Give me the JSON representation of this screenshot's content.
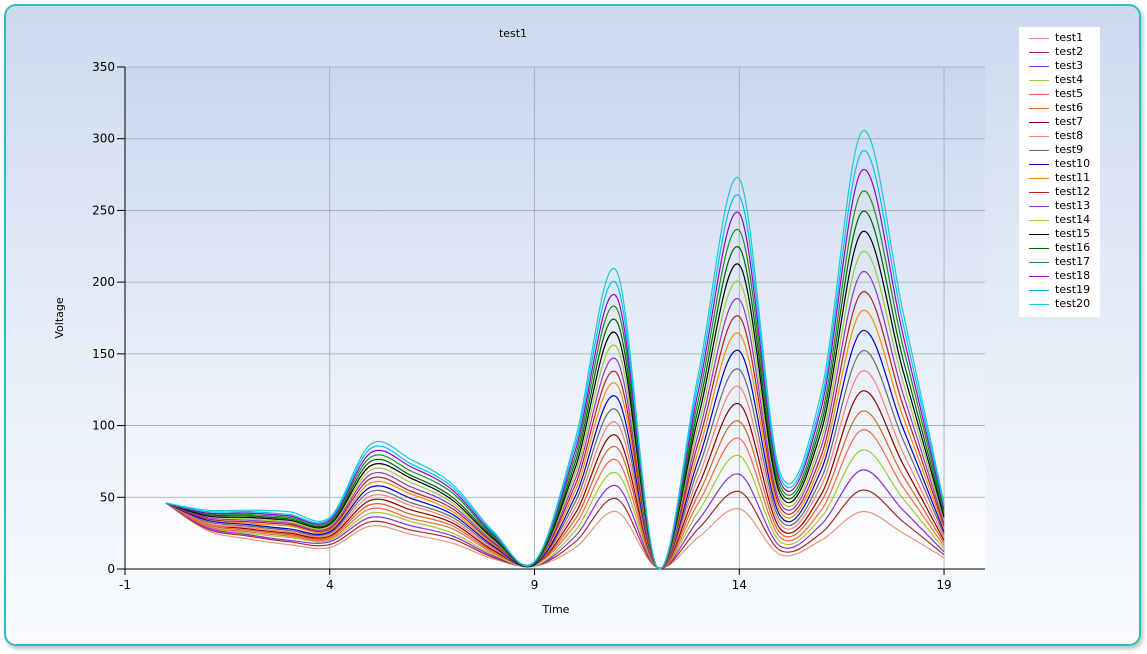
{
  "chart_data": {
    "type": "line",
    "title": "test1",
    "xlabel": "Time",
    "ylabel": "Voltage",
    "xlim": [
      -1,
      20
    ],
    "ylim": [
      0,
      350
    ],
    "x_ticks": [
      "-1",
      "4",
      "9",
      "14",
      "19"
    ],
    "y_ticks": [
      "0",
      "50",
      "100",
      "150",
      "200",
      "250",
      "300",
      "350"
    ],
    "grid": true,
    "legend_position": "top-right",
    "x": [
      0,
      1,
      2,
      3,
      4,
      5,
      6,
      7,
      8,
      9,
      10,
      11,
      12,
      13,
      14,
      15,
      16,
      17,
      18,
      19
    ],
    "series": [
      {
        "name": "test1",
        "color": "#e9967a",
        "values": [
          46,
          27,
          21,
          17,
          15,
          30,
          24,
          18,
          7,
          2,
          15,
          40,
          1,
          22,
          42,
          10,
          20,
          40,
          25,
          8
        ]
      },
      {
        "name": "test2",
        "color": "#a52a2a",
        "values": [
          46,
          28,
          23,
          19,
          17,
          33,
          27,
          21,
          8,
          2,
          19,
          49,
          1,
          28,
          54,
          13,
          25,
          55,
          33,
          10
        ]
      },
      {
        "name": "test3",
        "color": "#8a2be2",
        "values": [
          46,
          29,
          24,
          20,
          19,
          36,
          30,
          23,
          9,
          2,
          23,
          58,
          1,
          34,
          66,
          16,
          31,
          69,
          41,
          12
        ]
      },
      {
        "name": "test4",
        "color": "#9acd32",
        "values": [
          46,
          30,
          25,
          22,
          20,
          39,
          33,
          25,
          10,
          2,
          27,
          67,
          1,
          40,
          79,
          19,
          36,
          83,
          49,
          14
        ]
      },
      {
        "name": "test5",
        "color": "#ff6347",
        "values": [
          46,
          30,
          26,
          23,
          21,
          42,
          35,
          28,
          11,
          3,
          31,
          76,
          1,
          46,
          91,
          22,
          41,
          97,
          57,
          16
        ]
      },
      {
        "name": "test6",
        "color": "#d2691e",
        "values": [
          46,
          31,
          27,
          24,
          22,
          45,
          38,
          30,
          12,
          3,
          35,
          85,
          1,
          52,
          103,
          25,
          47,
          110,
          65,
          18
        ]
      },
      {
        "name": "test7",
        "color": "#8b0000",
        "values": [
          46,
          32,
          28,
          25,
          23,
          48,
          41,
          32,
          13,
          3,
          39,
          93,
          1,
          58,
          115,
          28,
          52,
          124,
          73,
          20
        ]
      },
      {
        "name": "test8",
        "color": "#fa8072",
        "values": [
          46,
          32,
          29,
          26,
          24,
          51,
          44,
          34,
          14,
          3,
          43,
          102,
          1,
          64,
          127,
          31,
          58,
          138,
          81,
          22
        ]
      },
      {
        "name": "test9",
        "color": "#696969",
        "values": [
          46,
          33,
          30,
          27,
          25,
          54,
          46,
          36,
          15,
          3,
          47,
          111,
          1,
          70,
          139,
          34,
          63,
          152,
          90,
          24
        ]
      },
      {
        "name": "test10",
        "color": "#0000cd",
        "values": [
          46,
          34,
          31,
          28,
          26,
          57,
          49,
          38,
          16,
          3,
          51,
          120,
          1,
          76,
          152,
          37,
          69,
          166,
          98,
          26
        ]
      },
      {
        "name": "test11",
        "color": "#ff8c00",
        "values": [
          46,
          35,
          32,
          30,
          27,
          60,
          52,
          40,
          17,
          4,
          55,
          129,
          1,
          82,
          164,
          40,
          74,
          180,
          106,
          28
        ]
      },
      {
        "name": "test12",
        "color": "#b22222",
        "values": [
          46,
          35,
          33,
          31,
          28,
          63,
          54,
          42,
          18,
          4,
          59,
          137,
          1,
          88,
          176,
          43,
          79,
          193,
          114,
          30
        ]
      },
      {
        "name": "test13",
        "color": "#9932cc",
        "values": [
          46,
          36,
          34,
          32,
          29,
          66,
          57,
          44,
          19,
          4,
          63,
          146,
          1,
          94,
          188,
          46,
          85,
          207,
          122,
          32
        ]
      },
      {
        "name": "test14",
        "color": "#9acd32",
        "values": [
          46,
          37,
          35,
          33,
          30,
          69,
          60,
          46,
          20,
          4,
          67,
          155,
          1,
          100,
          200,
          49,
          90,
          221,
          130,
          34
        ]
      },
      {
        "name": "test15",
        "color": "#000000",
        "values": [
          46,
          37,
          36,
          34,
          31,
          72,
          63,
          48,
          21,
          4,
          71,
          164,
          1,
          106,
          212,
          52,
          96,
          235,
          138,
          36
        ]
      },
      {
        "name": "test16",
        "color": "#006400",
        "values": [
          46,
          38,
          37,
          35,
          32,
          75,
          65,
          50,
          22,
          4,
          75,
          173,
          1,
          112,
          224,
          55,
          101,
          249,
          146,
          38
        ]
      },
      {
        "name": "test17",
        "color": "#228b22",
        "values": [
          46,
          39,
          38,
          36,
          33,
          78,
          68,
          53,
          23,
          5,
          79,
          182,
          1,
          118,
          236,
          58,
          106,
          263,
          155,
          40
        ]
      },
      {
        "name": "test18",
        "color": "#9400d3",
        "values": [
          46,
          39,
          39,
          37,
          34,
          81,
          71,
          55,
          24,
          5,
          83,
          190,
          1,
          124,
          248,
          61,
          112,
          278,
          163,
          42
        ]
      },
      {
        "name": "test19",
        "color": "#00bfff",
        "values": [
          46,
          40,
          40,
          38,
          35,
          84,
          73,
          57,
          25,
          5,
          87,
          199,
          1,
          130,
          260,
          64,
          117,
          291,
          171,
          44
        ]
      },
      {
        "name": "test20",
        "color": "#1ec8d2",
        "values": [
          46,
          41,
          41,
          40,
          36,
          87,
          76,
          59,
          26,
          5,
          91,
          208,
          1,
          136,
          272,
          67,
          123,
          305,
          179,
          46
        ]
      }
    ]
  }
}
